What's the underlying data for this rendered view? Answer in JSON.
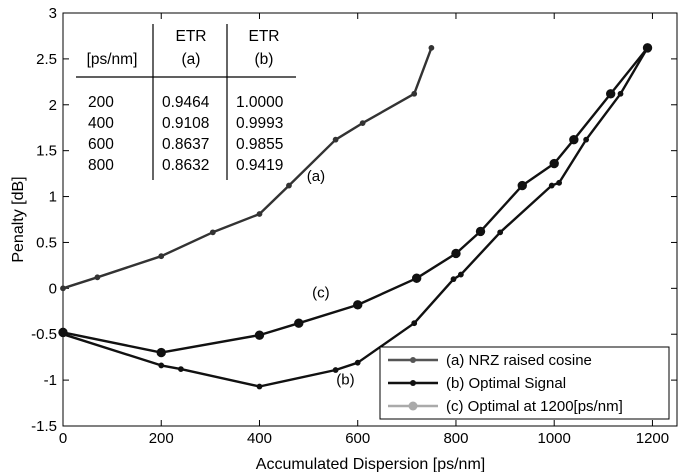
{
  "chart_data": {
    "type": "line",
    "xlabel": "Accumulated Dispersion [ps/nm]",
    "ylabel": "Penalty [dB]",
    "xlim": [
      0,
      1250
    ],
    "ylim": [
      -1.5,
      3
    ],
    "xticks": [
      "0",
      "200",
      "400",
      "600",
      "800",
      "1000",
      "1200"
    ],
    "xtick_values": [
      0,
      200,
      400,
      600,
      800,
      1000,
      1200
    ],
    "yticks": [
      "-1.5",
      "-1",
      "-0.5",
      "0",
      "0.5",
      "1",
      "1.5",
      "2",
      "2.5",
      "3"
    ],
    "ytick_values": [
      -1.5,
      -1,
      -0.5,
      0,
      0.5,
      1,
      1.5,
      2,
      2.5,
      3
    ],
    "grid": false,
    "legend_position": "bottom-right",
    "series": [
      {
        "name": "(a) NRZ raised cosine",
        "color": "#333333",
        "marker_size": "small",
        "x": [
          0,
          70,
          200,
          305,
          400,
          460,
          555,
          610,
          715,
          750
        ],
        "y": [
          0.0,
          0.12,
          0.35,
          0.61,
          0.81,
          1.12,
          1.62,
          1.8,
          2.12,
          2.62
        ]
      },
      {
        "name": "(b) Optimal Signal",
        "color": "#111111",
        "marker_size": "small",
        "x": [
          0,
          200,
          240,
          400,
          555,
          600,
          715,
          795,
          810,
          890,
          995,
          1010,
          1065,
          1135,
          1190
        ],
        "y": [
          -0.5,
          -0.84,
          -0.88,
          -1.07,
          -0.89,
          -0.81,
          -0.38,
          0.1,
          0.15,
          0.61,
          1.12,
          1.15,
          1.62,
          2.12,
          2.62
        ]
      },
      {
        "name": "(c) Optimal at 1200[ps/nm]",
        "color": "#111111",
        "marker_size": "large",
        "x": [
          0,
          200,
          400,
          480,
          600,
          720,
          800,
          850,
          935,
          1000,
          1040,
          1115,
          1190
        ],
        "y": [
          -0.48,
          -0.7,
          -0.51,
          -0.38,
          -0.18,
          0.11,
          0.38,
          0.62,
          1.12,
          1.36,
          1.62,
          2.12,
          2.62
        ]
      }
    ],
    "annotations": [
      {
        "text": "(a)",
        "x": 515,
        "y": 1.17
      },
      {
        "text": "(c)",
        "x": 525,
        "y": -0.1
      },
      {
        "text": "(b)",
        "x": 575,
        "y": -1.05
      }
    ],
    "inset_table": {
      "headers": [
        [
          "",
          "ETR",
          "ETR"
        ],
        [
          "[ps/nm]",
          "(a)",
          "(b)"
        ]
      ],
      "rows": [
        [
          "200",
          "0.9464",
          "1.0000"
        ],
        [
          "400",
          "0.9108",
          "0.9993"
        ],
        [
          "600",
          "0.8637",
          "0.9855"
        ],
        [
          "800",
          "0.8632",
          "0.9419"
        ]
      ]
    }
  }
}
